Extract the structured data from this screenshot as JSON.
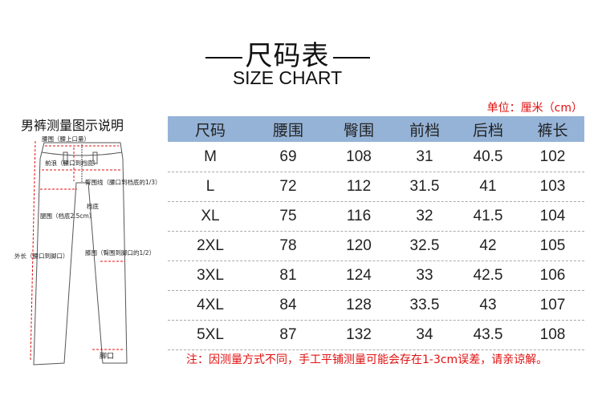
{
  "header": {
    "title": "尺码表",
    "subtitle": "SIZE CHART",
    "unit": "单位：厘米（cm）"
  },
  "diagram": {
    "title": "男裤测量图示说明",
    "labels": {
      "waist": "腰围（腰上口量）",
      "front_rise": "前浪（腰口到档底）",
      "hip_line": "臀围线（腰口到档底的1/3）",
      "crotch": "档底",
      "thigh": "腿围（档底2.5cm）",
      "outseam": "外长（腰口到脚口）",
      "knee": "膝围（臀围到脚口的1/2）",
      "leg_opening": "脚口"
    }
  },
  "table": {
    "headers": [
      "尺码",
      "腰围",
      "臀围",
      "前档",
      "后档",
      "裤长"
    ],
    "header_color": "#95b3d7",
    "rows": [
      [
        "M",
        "69",
        "108",
        "31",
        "40.5",
        "102"
      ],
      [
        "L",
        "72",
        "112",
        "31.5",
        "41",
        "103"
      ],
      [
        "XL",
        "75",
        "116",
        "32",
        "41.5",
        "104"
      ],
      [
        "2XL",
        "78",
        "120",
        "32.5",
        "42",
        "105"
      ],
      [
        "3XL",
        "81",
        "124",
        "33",
        "42.5",
        "106"
      ],
      [
        "4XL",
        "84",
        "128",
        "33.5",
        "43",
        "107"
      ],
      [
        "5XL",
        "87",
        "132",
        "34",
        "43.5",
        "108"
      ]
    ]
  },
  "note": "注：因测量方式不同，手工平铺测量可能会存在1-3cm误差，请亲谅解。",
  "accent_color": "#e01010"
}
